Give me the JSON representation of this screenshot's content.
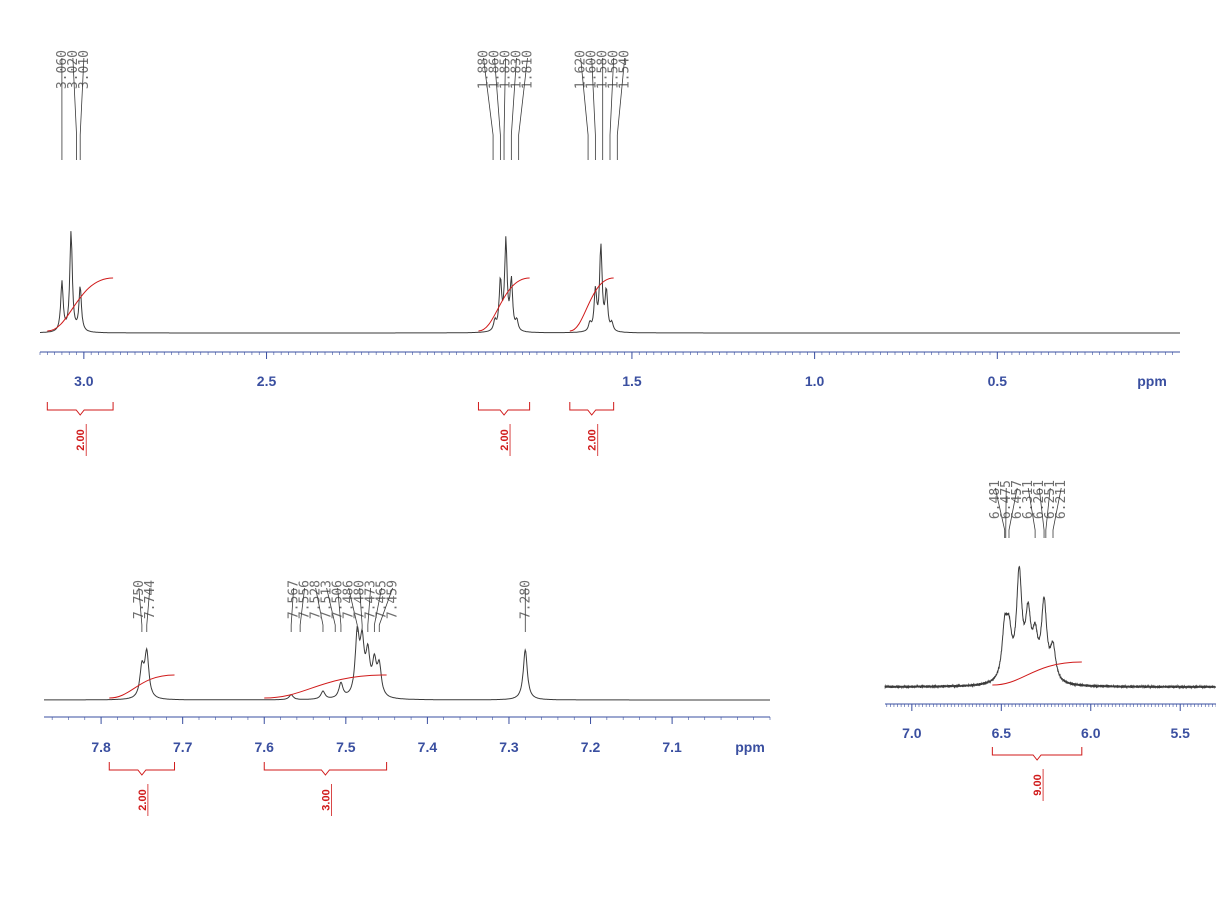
{
  "chart_data": [
    {
      "type": "line",
      "title": "",
      "xlabel": "ppm",
      "ylabel": "",
      "x_reversed": true,
      "xlim": [
        3.12,
        0.0
      ],
      "ticks": [
        3.0,
        2.5,
        1.5,
        1.0,
        0.5
      ],
      "tick_labels": [
        "3.0",
        "2.5",
        "1.5",
        "1.0",
        "0.5"
      ],
      "axis_unit_label": "ppm",
      "series": [
        {
          "peaks": [
            {
              "x": 3.06,
              "h": 0.5
            },
            {
              "x": 3.035,
              "h": 1.0
            },
            {
              "x": 3.01,
              "h": 0.45
            },
            {
              "x": 1.86,
              "h": 0.5
            },
            {
              "x": 1.845,
              "h": 0.9
            },
            {
              "x": 1.83,
              "h": 0.5
            },
            {
              "x": 1.875,
              "h": 0.1
            },
            {
              "x": 1.815,
              "h": 0.1
            },
            {
              "x": 1.6,
              "h": 0.4
            },
            {
              "x": 1.585,
              "h": 0.85
            },
            {
              "x": 1.57,
              "h": 0.4
            },
            {
              "x": 1.615,
              "h": 0.08
            },
            {
              "x": 1.555,
              "h": 0.08
            }
          ]
        }
      ],
      "peak_labels": [
        {
          "group": [
            3.06,
            3.02,
            3.01
          ],
          "labels": [
            "3.060",
            "3.020",
            "3.010"
          ]
        },
        {
          "group": [
            1.88,
            1.86,
            1.85,
            1.83,
            1.81
          ],
          "labels": [
            "1.880",
            "1.860",
            "1.850",
            "1.830",
            "1.810"
          ]
        },
        {
          "group": [
            1.62,
            1.6,
            1.58,
            1.56,
            1.54
          ],
          "labels": [
            "1.620",
            "1.600",
            "1.580",
            "1.560",
            "1.540"
          ]
        }
      ],
      "integrals": [
        {
          "from": 3.1,
          "to": 2.92,
          "value": "2.00"
        },
        {
          "from": 1.92,
          "to": 1.78,
          "value": "2.00"
        },
        {
          "from": 1.67,
          "to": 1.55,
          "value": "2.00"
        }
      ]
    },
    {
      "type": "line",
      "title": "",
      "xlabel": "ppm",
      "ylabel": "",
      "x_reversed": true,
      "xlim": [
        7.87,
        6.98
      ],
      "ticks": [
        7.8,
        7.7,
        7.6,
        7.5,
        7.4,
        7.3,
        7.2,
        7.1
      ],
      "tick_labels": [
        "7.8",
        "7.7",
        "7.6",
        "7.5",
        "7.4",
        "7.3",
        "7.2",
        "7.1"
      ],
      "axis_unit_label": "ppm",
      "series": [
        {
          "peaks": [
            {
              "x": 7.75,
              "h": 0.3
            },
            {
              "x": 7.744,
              "h": 0.45
            },
            {
              "x": 7.567,
              "h": 0.05
            },
            {
              "x": 7.528,
              "h": 0.08
            },
            {
              "x": 7.506,
              "h": 0.15
            },
            {
              "x": 7.486,
              "h": 0.6
            },
            {
              "x": 7.48,
              "h": 0.5
            },
            {
              "x": 7.473,
              "h": 0.4
            },
            {
              "x": 7.465,
              "h": 0.32
            },
            {
              "x": 7.459,
              "h": 0.3
            },
            {
              "x": 7.28,
              "h": 0.5
            }
          ]
        }
      ],
      "peak_labels": [
        {
          "group": [
            7.75,
            7.744
          ],
          "labels": [
            "7.750",
            "7.744"
          ]
        },
        {
          "group": [
            7.567,
            7.556,
            7.528,
            7.513,
            7.506,
            7.486,
            7.48,
            7.473,
            7.465,
            7.459
          ],
          "labels": [
            "7.567",
            "7.556",
            "7.528",
            "7.513",
            "7.506",
            "7.486",
            "7.480",
            "7.473",
            "7.465",
            "7.459"
          ]
        },
        {
          "group": [
            7.28
          ],
          "labels": [
            "7.280"
          ]
        }
      ],
      "integrals": [
        {
          "from": 7.79,
          "to": 7.71,
          "value": "2.00"
        },
        {
          "from": 7.6,
          "to": 7.45,
          "value": "3.00"
        }
      ]
    },
    {
      "type": "line",
      "title": "",
      "xlabel": "",
      "ylabel": "",
      "x_reversed": true,
      "xlim": [
        7.15,
        5.3
      ],
      "ticks": [
        7.0,
        6.5,
        6.0,
        5.5
      ],
      "tick_labels": [
        "7.0",
        "6.5",
        "6.0",
        "5.5"
      ],
      "axis_unit_label": "",
      "series": [
        {
          "peaks": [
            {
              "x": 6.481,
              "h": 0.45
            },
            {
              "x": 6.457,
              "h": 0.38
            },
            {
              "x": 6.4,
              "h": 0.95
            },
            {
              "x": 6.35,
              "h": 0.55
            },
            {
              "x": 6.311,
              "h": 0.35
            },
            {
              "x": 6.261,
              "h": 0.7
            },
            {
              "x": 6.211,
              "h": 0.3
            }
          ]
        }
      ],
      "peak_labels": [
        {
          "group": [
            6.481,
            6.475,
            6.457,
            6.311,
            6.261,
            6.251,
            6.211
          ],
          "labels": [
            "6.481",
            "6.475",
            "6.457",
            "6.311",
            "6.261",
            "6.251",
            "6.211"
          ]
        }
      ],
      "integrals": [
        {
          "from": 6.55,
          "to": 6.05,
          "value": "9.00"
        }
      ]
    }
  ]
}
